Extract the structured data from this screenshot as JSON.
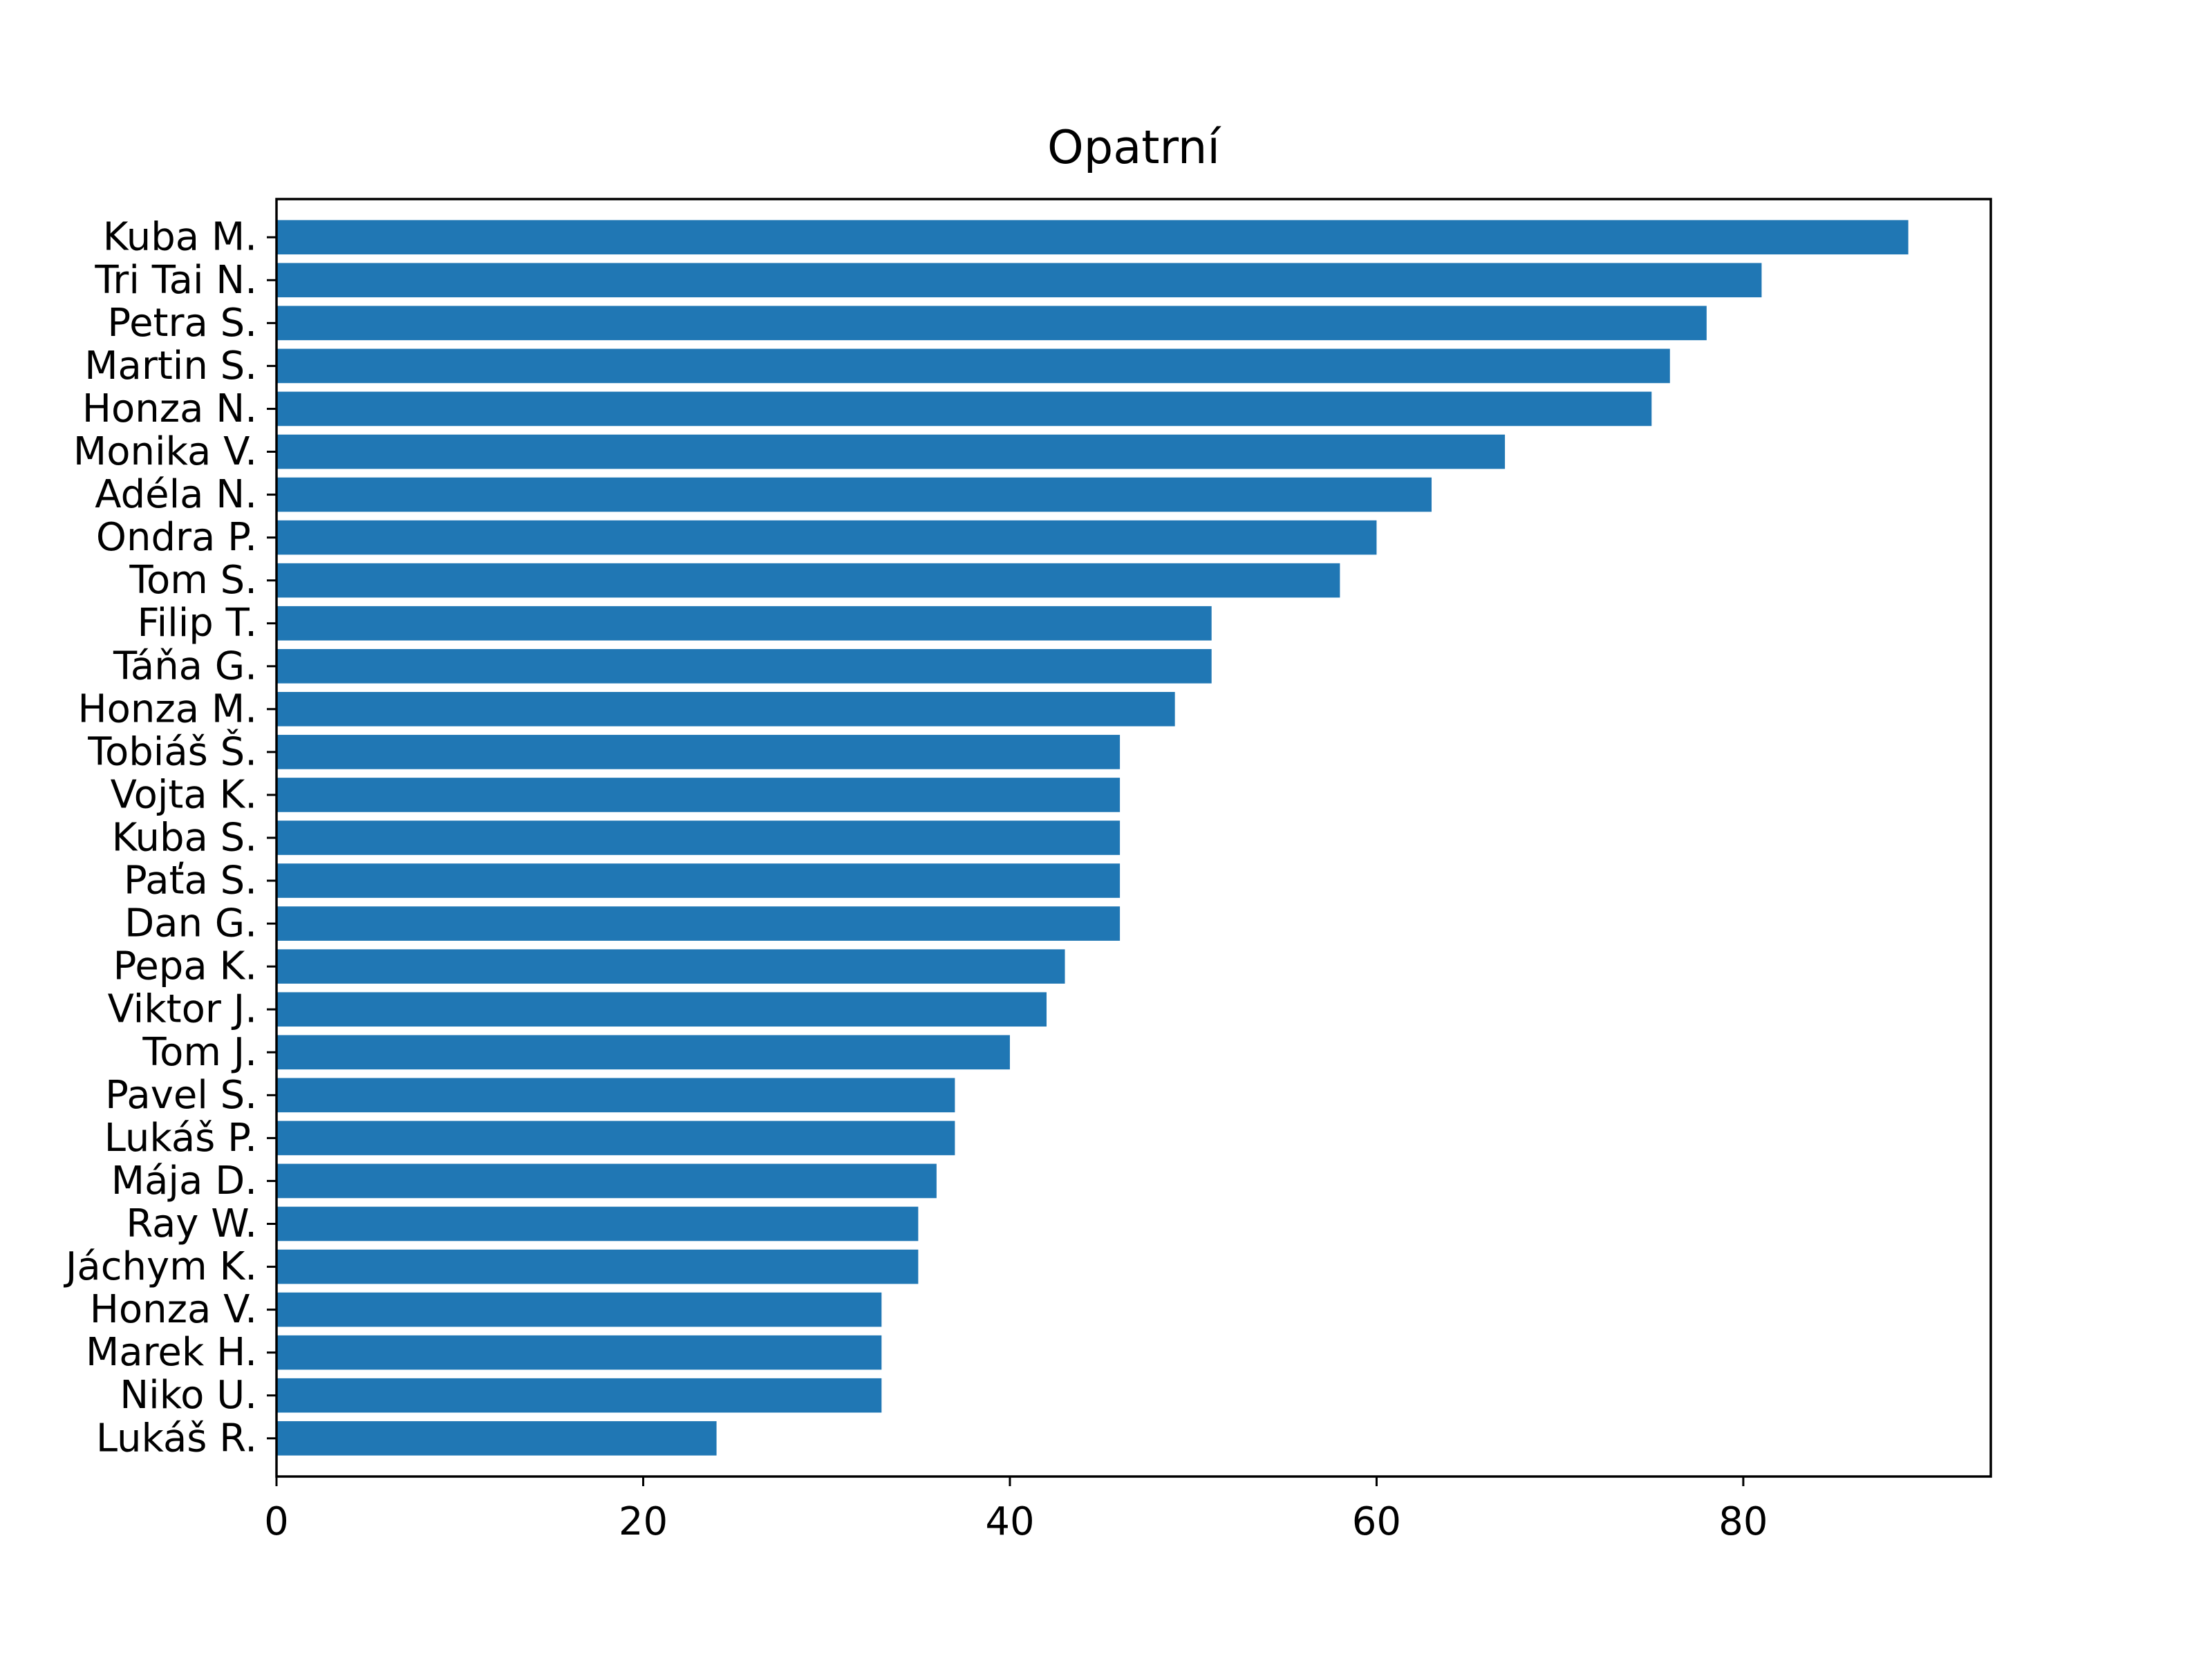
{
  "chart_data": {
    "type": "bar",
    "orientation": "horizontal",
    "title": "Opatrní",
    "xlabel": "",
    "ylabel": "",
    "xlim": [
      0,
      93.5
    ],
    "x_ticks": [
      0,
      20,
      40,
      60,
      80
    ],
    "grid": false,
    "legend": "none",
    "bar_color": "#2077b4",
    "categories": [
      "Kuba M.",
      "Tri Tai N.",
      "Petra S.",
      "Martin S.",
      "Honza N.",
      "Monika V.",
      "Adéla N.",
      "Ondra P.",
      "Tom S.",
      "Filip T.",
      "Táňa G.",
      "Honza M.",
      "Tobiáš Š.",
      "Vojta K.",
      "Kuba S.",
      "Paťa S.",
      "Dan G.",
      "Pepa K.",
      "Viktor J.",
      "Tom J.",
      "Pavel S.",
      "Lukáš P.",
      "Mája D.",
      "Ray W.",
      "Jáchym K.",
      "Honza V.",
      "Marek H.",
      "Niko U.",
      "Lukáš R."
    ],
    "values": [
      89,
      81,
      78,
      76,
      75,
      67,
      63,
      60,
      58,
      51,
      51,
      49,
      46,
      46,
      46,
      46,
      46,
      43,
      42,
      40,
      37,
      37,
      36,
      35,
      35,
      33,
      33,
      33,
      24
    ]
  }
}
